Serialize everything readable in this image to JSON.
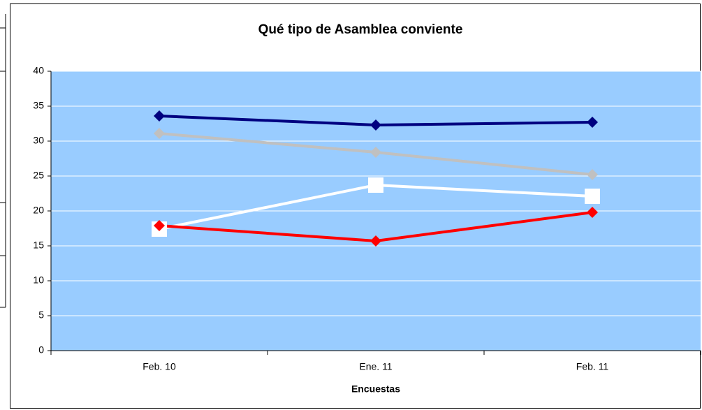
{
  "chart_data": {
    "type": "line",
    "title": "Qué tipo de Asamblea conviente",
    "x_label": "Encuestas",
    "categories": [
      "Feb. 10",
      "Ene. 11",
      "Feb. 11"
    ],
    "series": [
      {
        "color": "#000080",
        "marker": "diamond",
        "values": [
          33.6,
          32.3,
          32.7
        ]
      },
      {
        "color": "#c0c0c0",
        "marker": "diamond",
        "values": [
          31.1,
          28.4,
          25.2
        ]
      },
      {
        "color": "#ffffff",
        "marker": "square",
        "values": [
          17.4,
          23.7,
          22.1
        ]
      },
      {
        "color": "#ff0000",
        "marker": "diamond",
        "values": [
          17.9,
          15.7,
          19.8
        ]
      }
    ],
    "ylim": [
      0,
      40
    ],
    "yticks": [
      0,
      5,
      10,
      15,
      20,
      25,
      30,
      35,
      40
    ],
    "grid": true,
    "plot_background": "#99ccff"
  }
}
